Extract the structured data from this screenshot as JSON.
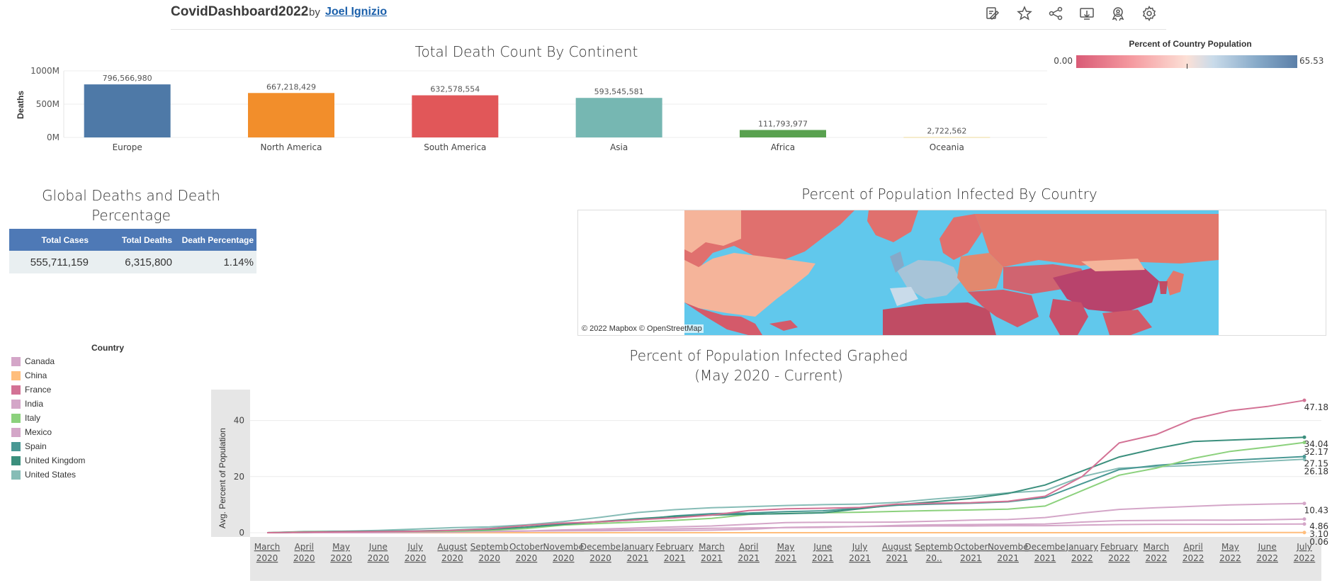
{
  "header": {
    "title": "CovidDashboard2022",
    "by": "by",
    "author": "Joel Ignizio",
    "icons": [
      "edit-icon",
      "star-icon",
      "share-icon",
      "download-icon",
      "badge-icon",
      "gear-icon"
    ]
  },
  "bar_chart": {
    "chart_data": {
      "type": "bar",
      "title": "Total Death Count By Continent",
      "ylabel": "Deaths",
      "xlabel": "",
      "categories": [
        "Europe",
        "North America",
        "South America",
        "Asia",
        "Africa",
        "Oceania"
      ],
      "values": [
        796566980,
        667218429,
        632578554,
        593545581,
        111793977,
        2722562
      ],
      "value_labels": [
        "796,566,980",
        "667,218,429",
        "632,578,554",
        "593,545,581",
        "111,793,977",
        "2,722,562"
      ],
      "colors": [
        "#4e79a7",
        "#f28e2b",
        "#e15759",
        "#76b7b2",
        "#59a14f",
        "#edc948"
      ],
      "y_ticks": [
        "1000M",
        "500M",
        "0M"
      ],
      "ylim": [
        0,
        1000000000
      ]
    }
  },
  "map_legend": {
    "title": "Percent of Country Population",
    "min": "0.00",
    "max": "65.53"
  },
  "table": {
    "title": "Global Deaths and Death Percentage",
    "headers": [
      "Total Cases",
      "Total Deaths",
      "Death Percentage"
    ],
    "row": [
      "555,711,159",
      "6,315,800",
      "1.14%"
    ]
  },
  "map": {
    "title": "Percent of Population Infected By Country",
    "attribution": "© 2022 Mapbox  © OpenStreetMap"
  },
  "country_legend": {
    "title": "Country",
    "items": [
      {
        "name": "Canada",
        "color": "#d4a6c8"
      },
      {
        "name": "China",
        "color": "#ffbe7d"
      },
      {
        "name": "France",
        "color": "#d37295"
      },
      {
        "name": "India",
        "color": "#d4a6c8"
      },
      {
        "name": "Italy",
        "color": "#8cd17d"
      },
      {
        "name": "Mexico",
        "color": "#d4a6c8"
      },
      {
        "name": "Spain",
        "color": "#499894"
      },
      {
        "name": "United Kingdom",
        "color": "#3b8f7d"
      },
      {
        "name": "United States",
        "color": "#86bcb6"
      }
    ]
  },
  "line_chart": {
    "chart_data": {
      "type": "line",
      "title": "Percent of Population  Infected  Graphed",
      "subtitle": "(May 2020 - Current)",
      "ylabel": "Avg. Percent of Population",
      "xlabel": "",
      "ylim": [
        0,
        50
      ],
      "y_ticks": [
        0,
        20,
        40
      ],
      "x": [
        "March 2020",
        "April 2020",
        "May 2020",
        "June 2020",
        "July 2020",
        "August 2020",
        "Septemb 2020",
        "October 2020",
        "Novembe 2020",
        "Decembe 2020",
        "January 2021",
        "February 2021",
        "March 2021",
        "April 2021",
        "May 2021",
        "June 2021",
        "July 2021",
        "August 2021",
        "Septemb 20..",
        "October 2021",
        "Novembe 2021",
        "Decembe 2021",
        "January 2022",
        "February 2022",
        "March 2022",
        "April 2022",
        "May 2022",
        "June 2022",
        "July 2022"
      ],
      "x_labels": [
        [
          "March",
          "2020"
        ],
        [
          "April",
          "2020"
        ],
        [
          "May",
          "2020"
        ],
        [
          "June",
          "2020"
        ],
        [
          "July",
          "2020"
        ],
        [
          "August",
          "2020"
        ],
        [
          "Septemb",
          "2020"
        ],
        [
          "October",
          "2020"
        ],
        [
          "Novembe",
          "2020"
        ],
        [
          "Decembe",
          "2020"
        ],
        [
          "January",
          "2021"
        ],
        [
          "February",
          "2021"
        ],
        [
          "March",
          "2021"
        ],
        [
          "April",
          "2021"
        ],
        [
          "May",
          "2021"
        ],
        [
          "June",
          "2021"
        ],
        [
          "July",
          "2021"
        ],
        [
          "August",
          "2021"
        ],
        [
          "Septemb",
          "20.."
        ],
        [
          "October",
          "2021"
        ],
        [
          "Novembe",
          "2021"
        ],
        [
          "Decembe",
          "2021"
        ],
        [
          "January",
          "2022"
        ],
        [
          "February",
          "2022"
        ],
        [
          "March",
          "2022"
        ],
        [
          "April",
          "2022"
        ],
        [
          "May",
          "2022"
        ],
        [
          "June",
          "2022"
        ],
        [
          "July",
          "2022"
        ]
      ],
      "series": [
        {
          "name": "France",
          "color": "#d37295",
          "end_label": "47.18",
          "values": [
            0.0,
            0.2,
            0.3,
            0.4,
            0.5,
            0.8,
            1.4,
            2.6,
            3.4,
            3.9,
            4.6,
            5.3,
            6.3,
            7.9,
            8.5,
            8.7,
            9.0,
            10.2,
            10.5,
            10.7,
            11.2,
            13.0,
            20.0,
            32.0,
            35.0,
            40.5,
            43.5,
            45.0,
            47.18
          ]
        },
        {
          "name": "United Kingdom",
          "color": "#3b8f7d",
          "end_label": "34.04",
          "values": [
            0.0,
            0.2,
            0.4,
            0.5,
            0.6,
            0.8,
            1.2,
            2.0,
            3.0,
            4.0,
            5.0,
            5.8,
            6.3,
            6.6,
            6.8,
            7.1,
            8.5,
            10.0,
            11.0,
            12.2,
            14.0,
            17.0,
            22.0,
            27.0,
            30.0,
            32.5,
            33.0,
            33.5,
            34.04
          ]
        },
        {
          "name": "Italy",
          "color": "#8cd17d",
          "end_label": "32.17",
          "values": [
            0.0,
            0.3,
            0.4,
            0.4,
            0.4,
            0.5,
            0.8,
            1.5,
            2.7,
            3.3,
            3.8,
            4.4,
            5.1,
            6.5,
            6.9,
            7.1,
            7.3,
            7.6,
            7.9,
            8.1,
            8.4,
            9.5,
            15.0,
            20.5,
            23.0,
            26.5,
            29.0,
            30.5,
            32.17
          ]
        },
        {
          "name": "Spain",
          "color": "#499894",
          "end_label": "27.15",
          "values": [
            0.0,
            0.4,
            0.5,
            0.5,
            0.6,
            0.9,
            1.5,
            2.6,
            3.3,
            3.9,
            4.6,
            6.0,
            6.8,
            7.0,
            7.5,
            7.8,
            8.8,
            9.8,
            10.2,
            10.5,
            11.0,
            12.5,
            17.5,
            22.5,
            24.0,
            25.0,
            25.8,
            26.5,
            27.15
          ]
        },
        {
          "name": "United States",
          "color": "#86bcb6",
          "end_label": "26.18",
          "values": [
            0.0,
            0.2,
            0.5,
            0.8,
            1.3,
            1.8,
            2.1,
            2.8,
            4.0,
            5.5,
            7.2,
            8.2,
            8.9,
            9.3,
            9.7,
            10.0,
            10.2,
            10.8,
            12.0,
            13.0,
            14.2,
            15.0,
            20.0,
            23.0,
            23.5,
            24.0,
            24.8,
            25.5,
            26.18
          ]
        },
        {
          "name": "Canada",
          "color": "#d4a6c8",
          "end_label": "10.43",
          "values": [
            0.0,
            0.1,
            0.2,
            0.2,
            0.3,
            0.3,
            0.4,
            0.6,
            1.0,
            1.3,
            1.7,
            2.1,
            2.4,
            3.0,
            3.6,
            3.7,
            3.7,
            3.8,
            4.1,
            4.5,
            4.7,
            5.4,
            7.0,
            8.3,
            8.9,
            9.4,
            9.9,
            10.2,
            10.43
          ]
        },
        {
          "name": "Mexico",
          "color": "#d4a6c8",
          "end_label": "4.86",
          "values": [
            0.0,
            0.0,
            0.1,
            0.2,
            0.3,
            0.4,
            0.5,
            0.6,
            0.7,
            0.8,
            1.1,
            1.4,
            1.6,
            1.7,
            1.8,
            1.9,
            2.2,
            2.6,
            2.8,
            2.9,
            3.0,
            3.1,
            3.8,
            4.3,
            4.4,
            4.5,
            4.5,
            4.6,
            4.86
          ]
        },
        {
          "name": "India",
          "color": "#d4a6c8",
          "end_label": "3.10",
          "values": [
            0.0,
            0.0,
            0.0,
            0.0,
            0.1,
            0.2,
            0.4,
            0.6,
            0.7,
            0.7,
            0.8,
            0.8,
            0.9,
            1.2,
            1.9,
            2.1,
            2.2,
            2.3,
            2.4,
            2.4,
            2.5,
            2.5,
            2.7,
            2.9,
            3.0,
            3.0,
            3.0,
            3.05,
            3.1
          ]
        },
        {
          "name": "China",
          "color": "#ffbe7d",
          "end_label": "0.06",
          "values": [
            0.0,
            0.0,
            0.0,
            0.0,
            0.0,
            0.0,
            0.0,
            0.0,
            0.0,
            0.0,
            0.0,
            0.0,
            0.0,
            0.0,
            0.0,
            0.0,
            0.0,
            0.0,
            0.0,
            0.0,
            0.0,
            0.0,
            0.0,
            0.01,
            0.02,
            0.03,
            0.04,
            0.05,
            0.06
          ]
        }
      ]
    }
  }
}
